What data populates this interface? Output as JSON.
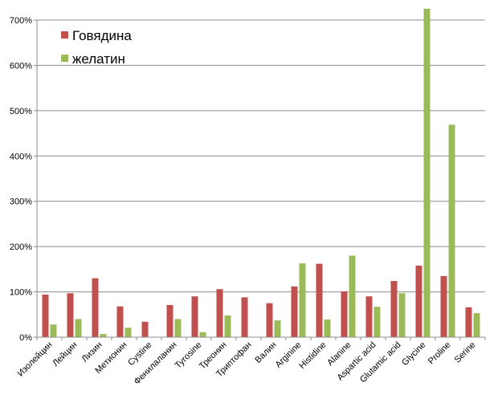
{
  "chart_data": {
    "type": "bar",
    "categories": [
      "Изолейцин",
      "Лейцин",
      "Лизин",
      "Метионин",
      "Cystine",
      "Фенилаланин",
      "Tyrosine",
      "Треонин",
      "Триптофан",
      "Валин",
      "Arginine",
      "Histidine",
      "Alanine",
      "Aspartic acid",
      "Glutamic acid",
      "Glycine",
      "Proline",
      "Serine"
    ],
    "series": [
      {
        "name": "Говядина",
        "color": "#c0504d",
        "values": [
          94,
          97,
          130,
          68,
          34,
          71,
          90,
          106,
          88,
          75,
          112,
          162,
          101,
          90,
          124,
          158,
          135,
          66
        ]
      },
      {
        "name": "желатин",
        "color": "#9bbb59",
        "values": [
          28,
          40,
          7,
          21,
          0,
          40,
          11,
          48,
          0,
          37,
          163,
          39,
          180,
          67,
          97,
          725,
          469,
          53
        ]
      }
    ],
    "ylim": [
      0,
      700
    ],
    "ytick_values": [
      0,
      100,
      200,
      300,
      400,
      500,
      600,
      700
    ],
    "ytick_labels": [
      "0%",
      "100%",
      "200%",
      "300%",
      "400%",
      "500%",
      "600%",
      "700%"
    ],
    "grid": true,
    "legend_position": "top-left",
    "title": "",
    "xlabel": "",
    "ylabel": ""
  }
}
